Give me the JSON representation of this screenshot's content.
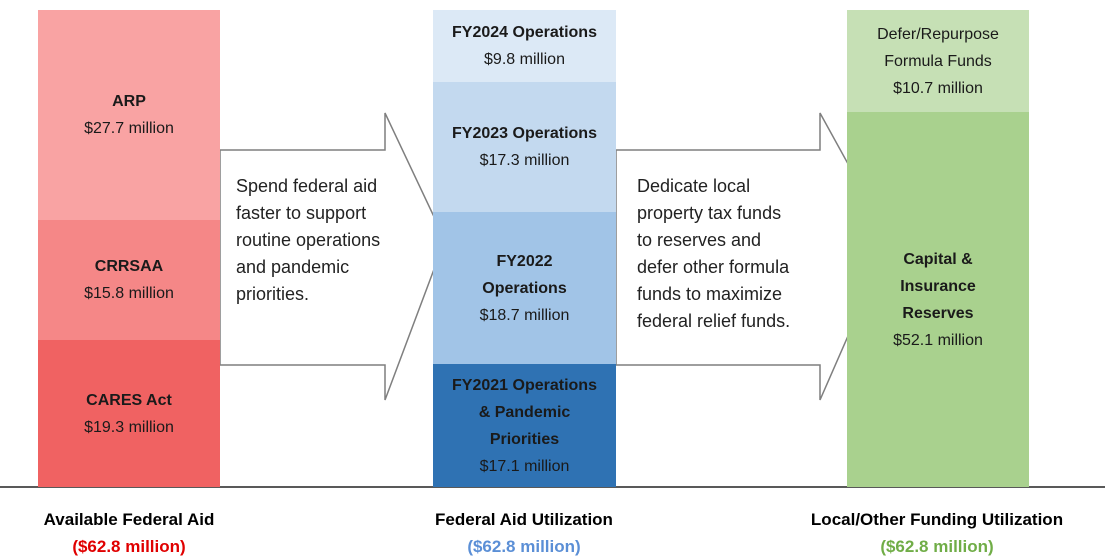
{
  "columns": [
    {
      "segments": [
        {
          "title": [
            "ARP"
          ],
          "amount": "$27.7 million"
        },
        {
          "title": [
            "CRRSAA"
          ],
          "amount": "$15.8 million"
        },
        {
          "title": [
            "CARES Act"
          ],
          "amount": "$19.3 million"
        }
      ],
      "label": "Available Federal Aid",
      "total": "($62.8 million)"
    },
    {
      "segments": [
        {
          "title": [
            "FY2024 Operations"
          ],
          "amount": "$9.8 million"
        },
        {
          "title": [
            "FY2023 Operations"
          ],
          "amount": "$17.3 million"
        },
        {
          "title": [
            "FY2022",
            "Operations"
          ],
          "amount": "$18.7 million"
        },
        {
          "title": [
            "FY2021 Operations",
            "& Pandemic",
            "Priorities"
          ],
          "amount": "$17.1 million"
        }
      ],
      "label": "Federal Aid Utilization",
      "total": "($62.8 million)"
    },
    {
      "segments": [
        {
          "title": [
            "Defer/Repurpose",
            "Formula Funds"
          ],
          "amount": "$10.7 million"
        },
        {
          "title": [
            "Capital &",
            "Insurance",
            "Reserves"
          ],
          "amount": "$52.1 million"
        }
      ],
      "label": "Local/Other Funding Utilization",
      "total": "($62.8 million)"
    }
  ],
  "arrows": [
    [
      "Spend federal aid",
      "faster to support",
      "routine operations",
      "and pandemic",
      "priorities."
    ],
    [
      "Dedicate local",
      "property tax funds",
      "to reserves and",
      "defer other formula",
      "funds to maximize",
      "federal relief funds."
    ]
  ]
}
